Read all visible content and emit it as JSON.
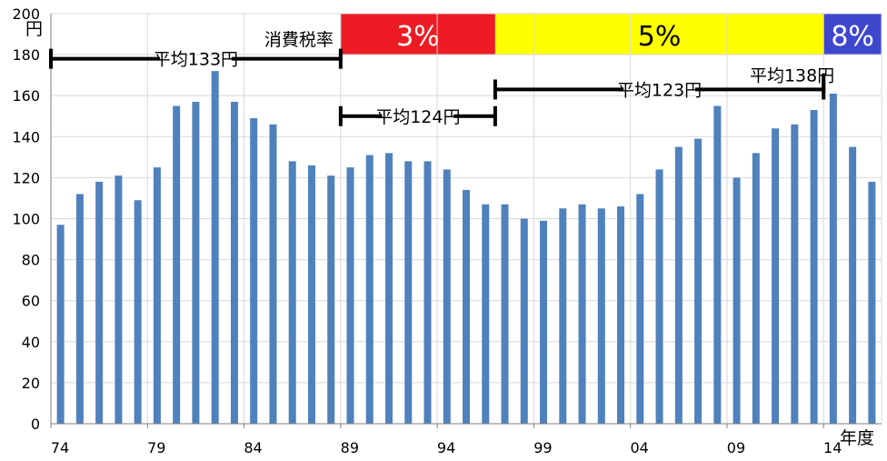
{
  "chart_data": {
    "type": "bar",
    "ylim": [
      0,
      200
    ],
    "ytick_step": 20,
    "ylabel_unit": "円",
    "xlabel_unit": "年度",
    "bar_color": "#4f81bd",
    "grid": true,
    "x_tick_labels": [
      "74",
      "79",
      "84",
      "89",
      "94",
      "99",
      "04",
      "09",
      "14"
    ],
    "categories": [
      "74",
      "75",
      "76",
      "77",
      "78",
      "79",
      "80",
      "81",
      "82",
      "83",
      "84",
      "85",
      "86",
      "87",
      "88",
      "89",
      "90",
      "91",
      "92",
      "93",
      "94",
      "95",
      "96",
      "97",
      "98",
      "99",
      "00",
      "01",
      "02",
      "03",
      "04",
      "05",
      "06",
      "07",
      "08",
      "09",
      "10",
      "11",
      "12",
      "13",
      "14",
      "15",
      "16"
    ],
    "values": [
      97,
      112,
      118,
      121,
      109,
      125,
      155,
      157,
      172,
      157,
      149,
      146,
      128,
      126,
      121,
      125,
      131,
      132,
      128,
      128,
      124,
      114,
      107,
      107,
      100,
      99,
      105,
      107,
      105,
      106,
      112,
      124,
      135,
      139,
      155,
      120,
      132,
      144,
      146,
      153,
      161,
      135,
      118
    ],
    "tax_band": {
      "title": "消費税率",
      "segments": [
        {
          "label": "3%",
          "from": "89",
          "to": "96",
          "color": "#ed1c24",
          "text_color": "#ffffff"
        },
        {
          "label": "5%",
          "from": "97",
          "to": "13",
          "color": "#ffff00",
          "text_color": "#000000"
        },
        {
          "label": "8%",
          "from": "14",
          "to": "16",
          "color": "#3f48cc",
          "text_color": "#ffffff"
        }
      ]
    },
    "annotations": [
      {
        "label": "平均133円",
        "from": "74",
        "to": "88",
        "y": 178
      },
      {
        "label": "平均124円",
        "from": "89",
        "to": "96",
        "y": 150
      },
      {
        "label": "平均123円",
        "from": "97",
        "to": "13",
        "y": 163
      },
      {
        "label": "平均138円",
        "from": "14",
        "to": "16",
        "y": 166
      }
    ]
  }
}
